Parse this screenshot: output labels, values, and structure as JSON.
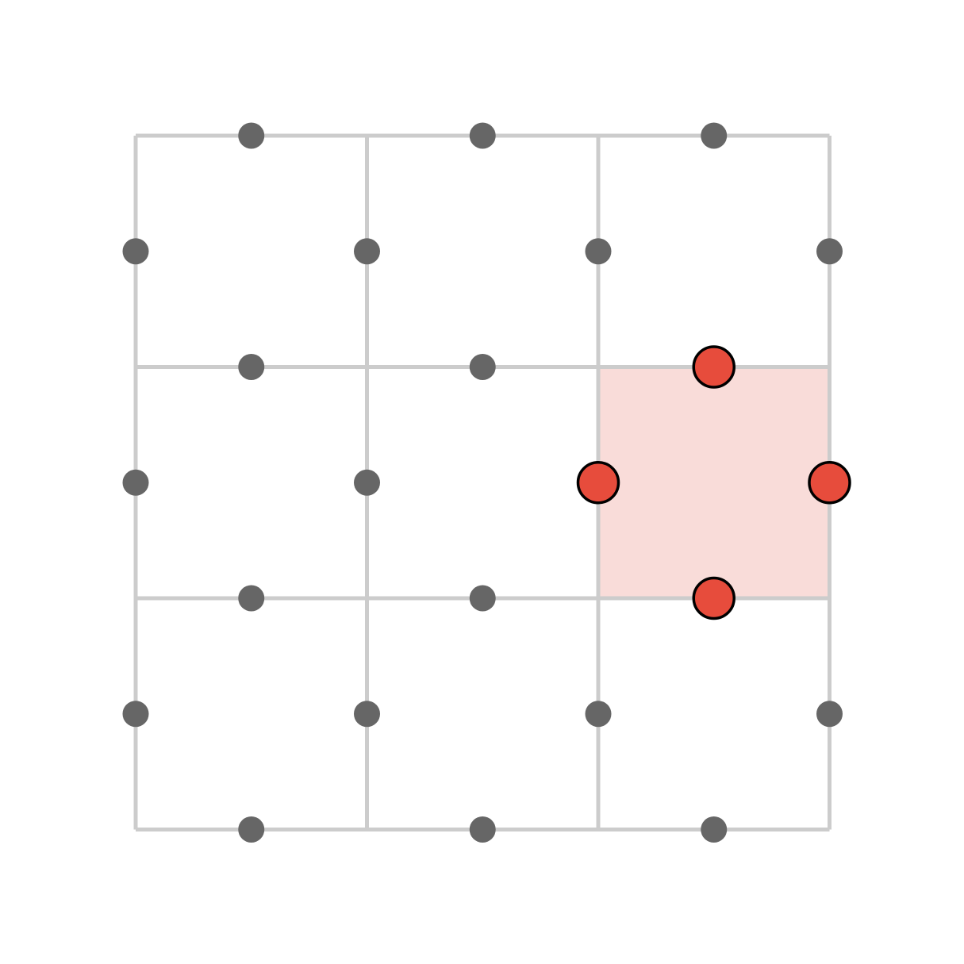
{
  "grid": {
    "rows": 3,
    "cols": 3,
    "highlighted_cell": {
      "row": 1,
      "col": 2
    }
  },
  "colors": {
    "background": "#ffffff",
    "grid_line": "#cccccc",
    "edge_dot": "#666666",
    "highlight_fill": "#f9dcd9",
    "highlight_stroke": "#d9a09b",
    "active_dot_fill": "#e74c3c",
    "active_dot_stroke": "#000000"
  }
}
